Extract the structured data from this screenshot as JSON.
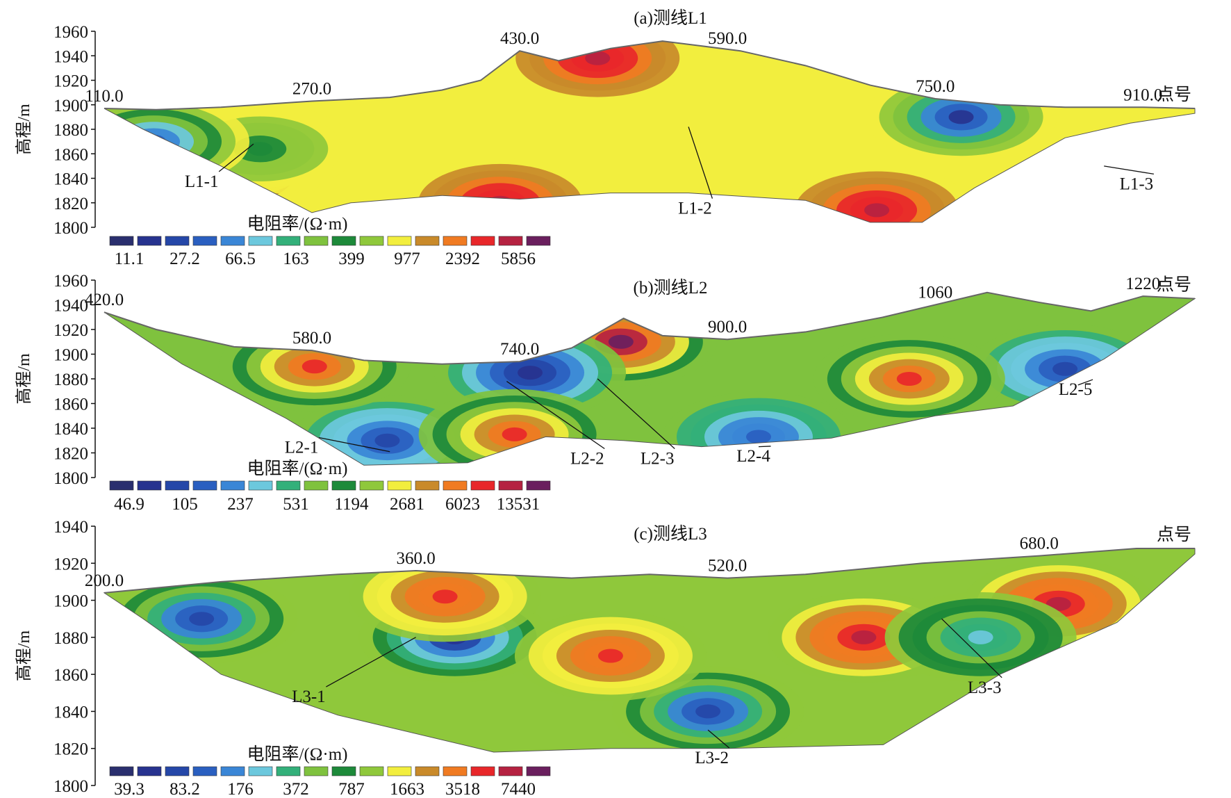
{
  "chart_data": [
    {
      "type": "heatmap",
      "title": "(a)测线L1",
      "ylabel": "高程/m",
      "ylim": [
        1800,
        1960
      ],
      "yticks": [
        1960,
        1940,
        1920,
        1900,
        1880,
        1860,
        1840,
        1820,
        1800
      ],
      "station_label": "点号",
      "station_range": [
        110,
        950
      ],
      "stations": [
        {
          "label": "110.0",
          "value": 110
        },
        {
          "label": "270.0",
          "value": 270
        },
        {
          "label": "430.0",
          "value": 430
        },
        {
          "label": "590.0",
          "value": 590
        },
        {
          "label": "750.0",
          "value": 750
        },
        {
          "label": "910.0",
          "value": 910
        }
      ],
      "surface": [
        [
          110,
          1897
        ],
        [
          150,
          1896
        ],
        [
          200,
          1898
        ],
        [
          270,
          1903
        ],
        [
          330,
          1906
        ],
        [
          370,
          1912
        ],
        [
          400,
          1920
        ],
        [
          430,
          1944
        ],
        [
          460,
          1936
        ],
        [
          500,
          1946
        ],
        [
          540,
          1952
        ],
        [
          570,
          1948
        ],
        [
          600,
          1944
        ],
        [
          650,
          1932
        ],
        [
          700,
          1916
        ],
        [
          750,
          1905
        ],
        [
          800,
          1900
        ],
        [
          850,
          1898
        ],
        [
          910,
          1898
        ],
        [
          950,
          1897
        ]
      ],
      "bottom": [
        [
          110,
          1897
        ],
        [
          140,
          1880
        ],
        [
          200,
          1850
        ],
        [
          250,
          1823
        ],
        [
          270,
          1812
        ],
        [
          300,
          1820
        ],
        [
          370,
          1826
        ],
        [
          430,
          1823
        ],
        [
          500,
          1828
        ],
        [
          560,
          1828
        ],
        [
          650,
          1822
        ],
        [
          700,
          1804
        ],
        [
          740,
          1804
        ],
        [
          780,
          1832
        ],
        [
          850,
          1873
        ],
        [
          900,
          1885
        ],
        [
          950,
          1893
        ]
      ],
      "anomalies": [
        {
          "x": 490,
          "y": 1938,
          "level": 14
        },
        {
          "x": 415,
          "y": 1820,
          "level": 14
        },
        {
          "x": 705,
          "y": 1814,
          "level": 14
        },
        {
          "x": 770,
          "y": 1890,
          "level": 1
        },
        {
          "x": 205,
          "y": 1845,
          "level": 12
        },
        {
          "x": 200,
          "y": 1860,
          "level": 6
        },
        {
          "x": 230,
          "y": 1864,
          "level": 8
        },
        {
          "x": 148,
          "y": 1870,
          "level": 3
        }
      ],
      "base_level": 10,
      "legend": {
        "title": "电阻率/(Ω·m)",
        "colors": [
          "#2a2f6e",
          "#27338f",
          "#2547a8",
          "#2a5fc0",
          "#3a86d6",
          "#6cc8dd",
          "#33b07a",
          "#7fc23e",
          "#1d8a3a",
          "#8fc83b",
          "#f2ee3e",
          "#c98a2a",
          "#f07b22",
          "#e8272a",
          "#b52241",
          "#6a1f5e"
        ],
        "values": [
          "11.1",
          "27.2",
          "66.5",
          "163",
          "399",
          "977",
          "2392",
          "5856"
        ]
      },
      "annotations": [
        {
          "text": "L1-1",
          "target": [
            225,
            1868
          ],
          "label_at": [
            185,
            1833
          ]
        },
        {
          "text": "L1-2",
          "target": [
            560,
            1882
          ],
          "label_at": [
            565,
            1811
          ]
        },
        {
          "text": "L1-3",
          "target": [
            880,
            1850
          ],
          "label_at": [
            905,
            1831
          ]
        }
      ]
    },
    {
      "type": "heatmap",
      "title": "(b)测线L2",
      "ylabel": "高程/m",
      "ylim": [
        1800,
        1960
      ],
      "yticks": [
        1960,
        1940,
        1920,
        1900,
        1880,
        1860,
        1840,
        1820,
        1800
      ],
      "station_label": "点号",
      "station_range": [
        420,
        1260
      ],
      "stations": [
        {
          "label": "420.0",
          "value": 420
        },
        {
          "label": "580.0",
          "value": 580
        },
        {
          "label": "740.0",
          "value": 740
        },
        {
          "label": "900.0",
          "value": 900
        },
        {
          "label": "1060",
          "value": 1060
        },
        {
          "label": "1220",
          "value": 1220
        }
      ],
      "surface": [
        [
          420,
          1934
        ],
        [
          460,
          1920
        ],
        [
          520,
          1906
        ],
        [
          580,
          1903
        ],
        [
          620,
          1895
        ],
        [
          680,
          1892
        ],
        [
          740,
          1894
        ],
        [
          780,
          1905
        ],
        [
          820,
          1929
        ],
        [
          850,
          1915
        ],
        [
          900,
          1912
        ],
        [
          960,
          1918
        ],
        [
          1020,
          1930
        ],
        [
          1060,
          1940
        ],
        [
          1100,
          1950
        ],
        [
          1140,
          1942
        ],
        [
          1180,
          1935
        ],
        [
          1220,
          1947
        ],
        [
          1260,
          1945
        ]
      ],
      "bottom": [
        [
          420,
          1934
        ],
        [
          480,
          1892
        ],
        [
          560,
          1848
        ],
        [
          620,
          1810
        ],
        [
          700,
          1812
        ],
        [
          760,
          1833
        ],
        [
          820,
          1830
        ],
        [
          880,
          1825
        ],
        [
          980,
          1832
        ],
        [
          1060,
          1850
        ],
        [
          1120,
          1858
        ],
        [
          1190,
          1896
        ],
        [
          1260,
          1945
        ]
      ],
      "anomalies": [
        {
          "x": 638,
          "y": 1830,
          "level": 2
        },
        {
          "x": 818,
          "y": 1910,
          "level": 15
        },
        {
          "x": 748,
          "y": 1885,
          "level": 1
        },
        {
          "x": 736,
          "y": 1835,
          "level": 13
        },
        {
          "x": 924,
          "y": 1833,
          "level": 3
        },
        {
          "x": 1160,
          "y": 1888,
          "level": 2
        },
        {
          "x": 1040,
          "y": 1880,
          "level": 13
        },
        {
          "x": 582,
          "y": 1890,
          "level": 13
        }
      ],
      "base_level": 7,
      "legend": {
        "title": "电阻率/(Ω·m)",
        "colors": [
          "#2a2f6e",
          "#27338f",
          "#2547a8",
          "#2a5fc0",
          "#3a86d6",
          "#6cc8dd",
          "#33b07a",
          "#7fc23e",
          "#1d8a3a",
          "#8fc83b",
          "#f2ee3e",
          "#c98a2a",
          "#f07b22",
          "#e8272a",
          "#b52241",
          "#6a1f5e"
        ],
        "values": [
          "46.9",
          "105",
          "237",
          "531",
          "1194",
          "2681",
          "6023",
          "13531"
        ]
      },
      "annotations": [
        {
          "text": "L2-1",
          "target": [
            640,
            1821
          ],
          "label_at": [
            572,
            1820
          ]
        },
        {
          "text": "L2-2",
          "target": [
            730,
            1878
          ],
          "label_at": [
            792,
            1811
          ]
        },
        {
          "text": "L2-3",
          "target": [
            800,
            1880
          ],
          "label_at": [
            846,
            1811
          ]
        },
        {
          "text": "L2-4",
          "target": [
            924,
            1825
          ],
          "label_at": [
            920,
            1813
          ]
        },
        {
          "text": "L2-5",
          "target": [
            1170,
            1875
          ],
          "label_at": [
            1168,
            1867
          ]
        }
      ]
    },
    {
      "type": "heatmap",
      "title": "(c)测线L3",
      "ylabel": "高程/m",
      "ylim": [
        1800,
        1940
      ],
      "yticks": [
        1940,
        1920,
        1900,
        1880,
        1860,
        1840,
        1820,
        1800
      ],
      "station_label": "点号",
      "station_range": [
        200,
        760
      ],
      "stations": [
        {
          "label": "200.0",
          "value": 200
        },
        {
          "label": "360.0",
          "value": 360
        },
        {
          "label": "520.0",
          "value": 520
        },
        {
          "label": "680.0",
          "value": 680
        }
      ],
      "surface": [
        [
          200,
          1904
        ],
        [
          260,
          1910
        ],
        [
          320,
          1914
        ],
        [
          360,
          1916
        ],
        [
          400,
          1914
        ],
        [
          440,
          1912
        ],
        [
          480,
          1914
        ],
        [
          520,
          1912
        ],
        [
          560,
          1914
        ],
        [
          620,
          1920
        ],
        [
          680,
          1924
        ],
        [
          730,
          1928
        ],
        [
          760,
          1928
        ]
      ],
      "bottom": [
        [
          200,
          1904
        ],
        [
          220,
          1890
        ],
        [
          260,
          1860
        ],
        [
          320,
          1838
        ],
        [
          400,
          1818
        ],
        [
          460,
          1820
        ],
        [
          520,
          1820
        ],
        [
          600,
          1822
        ],
        [
          660,
          1860
        ],
        [
          720,
          1888
        ],
        [
          760,
          1925
        ]
      ],
      "anomalies": [
        {
          "x": 380,
          "y": 1880,
          "level": 1
        },
        {
          "x": 510,
          "y": 1840,
          "level": 2
        },
        {
          "x": 590,
          "y": 1880,
          "level": 14
        },
        {
          "x": 690,
          "y": 1898,
          "level": 14
        },
        {
          "x": 375,
          "y": 1902,
          "level": 13
        },
        {
          "x": 650,
          "y": 1880,
          "level": 5
        },
        {
          "x": 250,
          "y": 1890,
          "level": 2
        },
        {
          "x": 460,
          "y": 1870,
          "level": 13
        }
      ],
      "base_level": 9,
      "legend": {
        "title": "电阻率/(Ω·m)",
        "colors": [
          "#2a2f6e",
          "#27338f",
          "#2547a8",
          "#2a5fc0",
          "#3a86d6",
          "#6cc8dd",
          "#33b07a",
          "#7fc23e",
          "#1d8a3a",
          "#8fc83b",
          "#f2ee3e",
          "#c98a2a",
          "#f07b22",
          "#e8272a",
          "#b52241",
          "#6a1f5e"
        ],
        "values": [
          "39.3",
          "83.2",
          "176",
          "372",
          "787",
          "1663",
          "3518",
          "7440"
        ]
      },
      "annotations": [
        {
          "text": "L3-1",
          "target": [
            360,
            1880
          ],
          "label_at": [
            305,
            1845
          ]
        },
        {
          "text": "L3-2",
          "target": [
            510,
            1830
          ],
          "label_at": [
            512,
            1812
          ]
        },
        {
          "text": "L3-3",
          "target": [
            630,
            1890
          ],
          "label_at": [
            652,
            1850
          ]
        }
      ]
    }
  ]
}
